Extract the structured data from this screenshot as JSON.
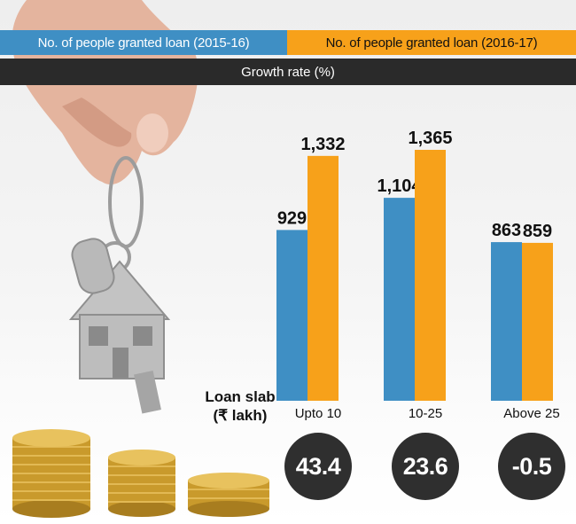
{
  "legend": {
    "series1": "No. of people granted loan (2015-16)",
    "series2": "No. of people granted loan (2016-17)",
    "growth_label": "Growth rate (%)"
  },
  "axis": {
    "title_line1": "Loan slab",
    "title_line2": "(₹ lakh)"
  },
  "colors": {
    "series1": "#3f8fc4",
    "series2": "#f7a11a",
    "growth": "#2a2a2a"
  },
  "chart_data": {
    "type": "bar",
    "categories": [
      "Upto 10",
      "10-25",
      "Above 25"
    ],
    "series": [
      {
        "name": "No. of people granted loan (2015-16)",
        "values": [
          929,
          1104,
          863
        ]
      },
      {
        "name": "No. of people granted loan (2016-17)",
        "values": [
          1332,
          1365,
          859
        ]
      }
    ],
    "value_labels": [
      [
        "929",
        "1,332"
      ],
      [
        "1,104",
        "1,365"
      ],
      [
        "863",
        "859"
      ]
    ],
    "growth_rate": [
      "43.4",
      "23.6",
      "-0.5"
    ],
    "xlabel": "Loan slab (₹ lakh)",
    "ylim": [
      0,
      1365
    ],
    "grid": false
  }
}
